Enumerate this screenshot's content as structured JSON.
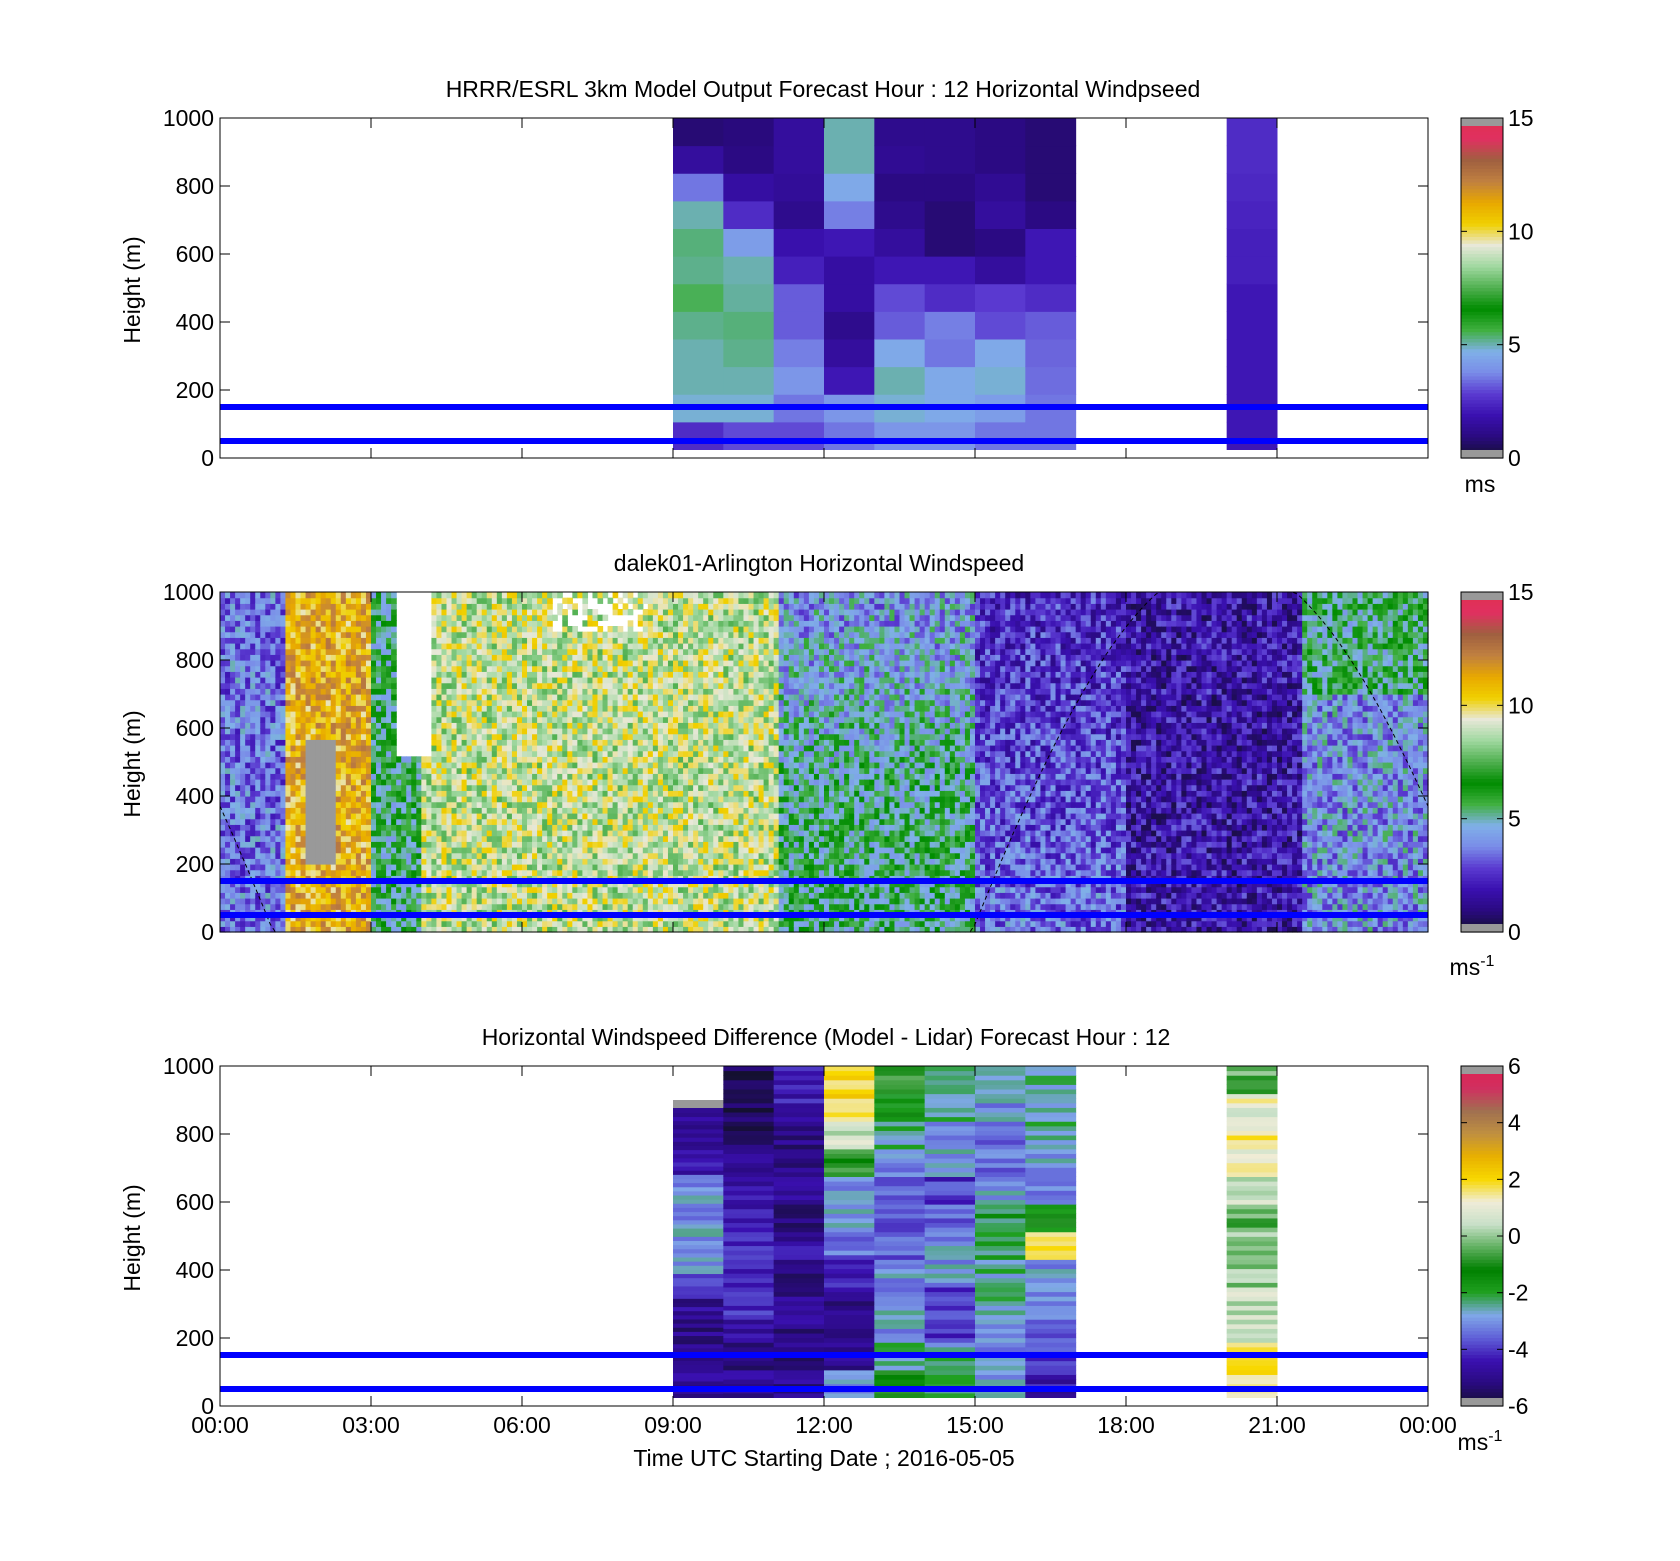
{
  "colors": {
    "reference_lines": "#0000ff",
    "axis": "#000000",
    "background": "#ffffff",
    "missing": "#999999",
    "speed_colormap": [
      "#141030",
      "#2a0a80",
      "#3a10b0",
      "#5a3ad0",
      "#7a8ce8",
      "#80b0e8",
      "#40b040",
      "#008c00",
      "#50b050",
      "#a0d8a0",
      "#e8e8d8",
      "#f0d000",
      "#e8a800",
      "#c08040",
      "#a06040",
      "#e03060",
      "#e03050"
    ],
    "diff_colormap": [
      "#141030",
      "#2a0a80",
      "#3a10b0",
      "#6060d8",
      "#80a8e8",
      "#20a020",
      "#008000",
      "#60b060",
      "#c8e0c8",
      "#f0ecd8",
      "#f8d800",
      "#e8b000",
      "#c09040",
      "#a07050",
      "#d03060",
      "#e02050"
    ]
  },
  "panels": [
    {
      "title": "HRRR/ESRL 3km Model Output   Forecast Hour : 12 Horizontal Windpseed",
      "ylabel": "Height (m)",
      "cbar_unit": "ms",
      "cbar_unit_exp": "",
      "cbar_ticks": [
        "15",
        "10",
        "5",
        "0"
      ]
    },
    {
      "title": "dalek01-Arlington  Horizontal Windspeed",
      "ylabel": "Height (m)",
      "cbar_unit": "ms",
      "cbar_unit_exp": "-1",
      "cbar_ticks": [
        "15",
        "10",
        "5",
        "0"
      ]
    },
    {
      "title": "Horizontal Windspeed Difference (Model - Lidar) Forecast Hour : 12",
      "ylabel": "Height (m)",
      "cbar_unit": "ms",
      "cbar_unit_exp": "-1",
      "cbar_ticks": [
        "6",
        "4",
        "2",
        "0",
        "-2",
        "-4",
        "-6"
      ]
    }
  ],
  "y_ticks": [
    "1000",
    "800",
    "600",
    "400",
    "200",
    "0"
  ],
  "x_ticks": [
    "00:00",
    "03:00",
    "06:00",
    "09:00",
    "12:00",
    "15:00",
    "18:00",
    "21:00",
    "00:00"
  ],
  "xlabel": "Time UTC  Starting Date ; 2016-05-05",
  "chart_data": [
    {
      "type": "heatmap",
      "title": "HRRR/ESRL 3km Model Output   Forecast Hour : 12 Horizontal Windpseed",
      "ylabel": "Height (m)",
      "ylim": [
        0,
        1000
      ],
      "xlim_hours": [
        0,
        24
      ],
      "clim": [
        0,
        15
      ],
      "colorbar_unit": "ms",
      "reference_lines_m": [
        50,
        150
      ],
      "columns": [
        {
          "t_hours": 9.5,
          "speeds": [
            2.5,
            4.8,
            5.0,
            5.0,
            5.2,
            5.5,
            5.2,
            5.3,
            5.0,
            3.5,
            1.5,
            0.8
          ]
        },
        {
          "t_hours": 10.5,
          "speeds": [
            3.0,
            4.8,
            5.0,
            5.2,
            5.3,
            5.1,
            5.0,
            4.2,
            2.5,
            1.6,
            1.0,
            0.9
          ]
        },
        {
          "t_hours": 11.5,
          "speeds": [
            3.0,
            3.5,
            4.0,
            3.6,
            3.2,
            3.2,
            2.2,
            1.8,
            1.2,
            1.4,
            1.5,
            1.5
          ]
        },
        {
          "t_hours": 12.5,
          "speeds": [
            3.5,
            4.0,
            2.0,
            1.5,
            1.2,
            1.6,
            1.6,
            2.0,
            3.6,
            4.5,
            5.0,
            5.0
          ]
        },
        {
          "t_hours": 13.5,
          "speeds": [
            4.0,
            4.8,
            5.0,
            4.5,
            3.2,
            3.0,
            2.0,
            1.5,
            1.2,
            1.0,
            1.3,
            1.2
          ]
        },
        {
          "t_hours": 14.5,
          "speeds": [
            4.0,
            4.5,
            4.5,
            3.5,
            3.6,
            2.5,
            2.0,
            0.8,
            0.8,
            1.0,
            1.2,
            1.2
          ]
        },
        {
          "t_hours": 15.5,
          "speeds": [
            3.5,
            4.2,
            4.8,
            4.5,
            3.0,
            2.8,
            1.5,
            1.0,
            1.5,
            1.3,
            1.0,
            1.0
          ]
        },
        {
          "t_hours": 16.5,
          "speeds": [
            3.5,
            3.5,
            3.4,
            3.3,
            3.2,
            2.5,
            2.0,
            2.0,
            1.0,
            0.8,
            0.8,
            0.8
          ]
        },
        {
          "t_hours": 20.5,
          "speeds": [
            2.0,
            2.0,
            2.0,
            2.0,
            2.0,
            2.0,
            2.2,
            2.2,
            2.3,
            2.4,
            2.5,
            2.5
          ]
        }
      ]
    },
    {
      "type": "heatmap",
      "title": "dalek01-Arlington  Horizontal Windspeed",
      "ylabel": "Height (m)",
      "ylim": [
        0,
        1000
      ],
      "xlim_hours": [
        0,
        24
      ],
      "clim": [
        0,
        15
      ],
      "colorbar_unit": "ms-1",
      "reference_lines_m": [
        50,
        150
      ],
      "dashed_curve_peak": {
        "t_hours": 20,
        "height_m": 900
      },
      "time_segments": [
        {
          "start_hours": 0,
          "end_hours": 1.3,
          "typical_speed": 3.5
        },
        {
          "start_hours": 1.3,
          "end_hours": 3.0,
          "typical_speed": 11.0
        },
        {
          "start_hours": 3.0,
          "end_hours": 4.0,
          "typical_speed": 5.5
        },
        {
          "start_hours": 4.0,
          "end_hours": 11.1,
          "typical_speed": 9.0
        },
        {
          "start_hours": 11.1,
          "end_hours": 15.0,
          "typical_speed": 5.5
        },
        {
          "start_hours": 15.0,
          "end_hours": 18.0,
          "typical_speed": 3.5
        },
        {
          "start_hours": 18.0,
          "end_hours": 21.5,
          "typical_speed": 1.8
        },
        {
          "start_hours": 21.5,
          "end_hours": 24.0,
          "typical_speed": 4.0
        }
      ]
    },
    {
      "type": "heatmap",
      "title": "Horizontal Windspeed Difference (Model - Lidar) Forecast Hour : 12",
      "ylabel": "Height (m)",
      "xlabel": "Time UTC  Starting Date ; 2016-05-05",
      "ylim": [
        0,
        1000
      ],
      "xlim_hours": [
        0,
        24
      ],
      "clim": [
        -6,
        6
      ],
      "colorbar_unit": "ms-1",
      "reference_lines_m": [
        50,
        150
      ],
      "columns": [
        {
          "t_hours": 9.5,
          "top_m": 900,
          "diffs": [
            -5.0,
            -5.0,
            -5.0,
            -4.8,
            -4.0,
            -3.0,
            -3.0,
            -3.0,
            -3.0,
            -4.5,
            -5.0,
            -5.0
          ]
        },
        {
          "t_hours": 10.5,
          "top_m": 1000,
          "diffs": [
            -5.0,
            -5.0,
            -4.5,
            -4.0,
            -4.5,
            -4.2,
            -4.5,
            -4.6,
            -5.0,
            -5.5,
            -5.5,
            -5.8
          ]
        },
        {
          "t_hours": 11.5,
          "top_m": 1000,
          "diffs": [
            -5.0,
            -5.2,
            -5.0,
            -5.0,
            -5.0,
            -4.6,
            -5.0,
            -5.0,
            -5.0,
            -5.0,
            -4.4,
            -4.2
          ]
        },
        {
          "t_hours": 12.5,
          "top_m": 1000,
          "diffs": [
            -3.0,
            -5.0,
            -5.0,
            -5.0,
            -4.5,
            -3.5,
            -3.0,
            -3.0,
            -1.0,
            0.5,
            2.0,
            2.0
          ]
        },
        {
          "t_hours": 13.5,
          "top_m": 1000,
          "diffs": [
            -1.0,
            -2.5,
            -3.0,
            -3.0,
            -3.0,
            -3.5,
            -3.8,
            -3.5,
            -3.0,
            -2.5,
            -1.5,
            -0.5
          ]
        },
        {
          "t_hours": 14.5,
          "top_m": 1000,
          "diffs": [
            -2.0,
            -2.5,
            -4.0,
            -4.0,
            -3.0,
            -3.0,
            -3.5,
            -4.0,
            -3.0,
            -3.0,
            -2.5,
            -2.5
          ]
        },
        {
          "t_hours": 15.5,
          "top_m": 1000,
          "diffs": [
            -3.0,
            -3.0,
            -3.0,
            -2.5,
            -2.5,
            -2.0,
            -2.0,
            -3.0,
            -3.5,
            -3.5,
            -3.0,
            -3.0
          ]
        },
        {
          "t_hours": 16.5,
          "top_m": 1000,
          "diffs": [
            -4.5,
            -4.0,
            -3.5,
            -3.0,
            -3.0,
            2.0,
            -1.5,
            -3.0,
            -3.0,
            -2.5,
            -2.5,
            -2.5
          ]
        },
        {
          "t_hours": 20.5,
          "top_m": 1000,
          "diffs": [
            1.5,
            1.5,
            0.5,
            0.5,
            0.0,
            0.0,
            -0.5,
            0.5,
            1.0,
            1.5,
            1.0,
            -0.5
          ]
        }
      ]
    }
  ]
}
